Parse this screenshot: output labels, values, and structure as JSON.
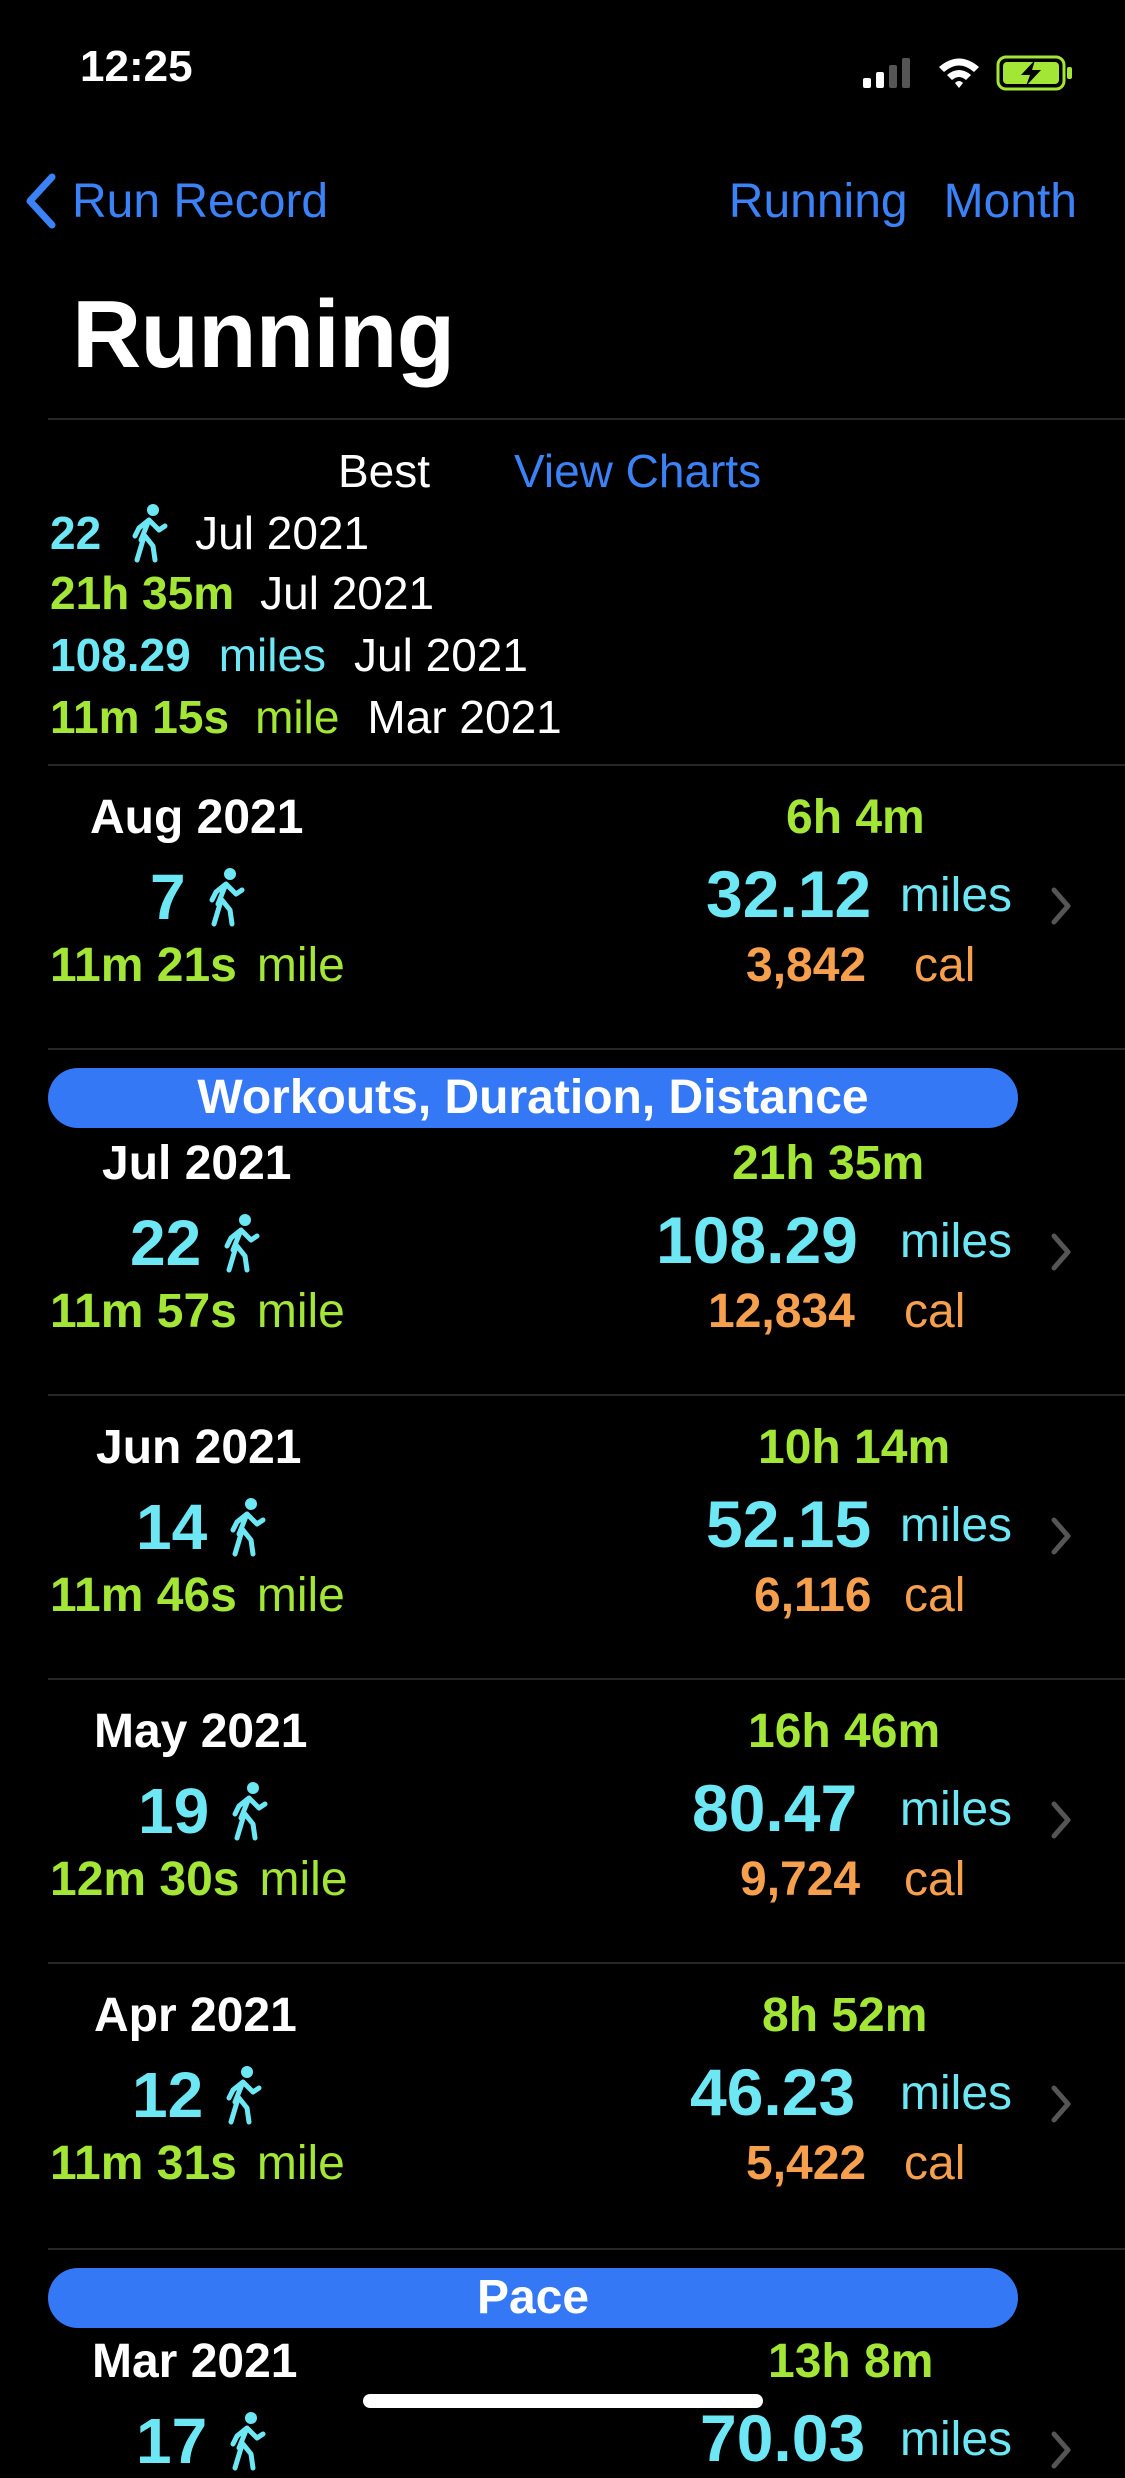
{
  "status_bar": {
    "time": "12:25"
  },
  "nav": {
    "back_label": "Run Record",
    "right_items": [
      "Running",
      "Month"
    ]
  },
  "title": "Running",
  "best": {
    "label": "Best",
    "view_charts": "View Charts",
    "workouts": {
      "value": "22",
      "date": "Jul 2021"
    },
    "duration": {
      "value": "21h 35m",
      "date": "Jul 2021"
    },
    "distance": {
      "value": "108.29",
      "unit": "miles",
      "date": "Jul 2021"
    },
    "pace": {
      "value": "11m 15s",
      "unit": "mile",
      "date": "Mar 2021"
    }
  },
  "sections": {
    "workouts_duration_distance": "Workouts, Duration, Distance",
    "pace": "Pace"
  },
  "months": [
    {
      "month": "Aug 2021",
      "count": "7",
      "pace": "11m 21s",
      "pace_unit": "mile",
      "duration": "6h 4m",
      "distance": "32.12",
      "distance_unit": "miles",
      "calories": "3,842",
      "cal_unit": "cal"
    },
    {
      "month": "Jul 2021",
      "count": "22",
      "pace": "11m 57s",
      "pace_unit": "mile",
      "duration": "21h 35m",
      "distance": "108.29",
      "distance_unit": "miles",
      "calories": "12,834",
      "cal_unit": "cal"
    },
    {
      "month": "Jun 2021",
      "count": "14",
      "pace": "11m 46s",
      "pace_unit": "mile",
      "duration": "10h 14m",
      "distance": "52.15",
      "distance_unit": "miles",
      "calories": "6,116",
      "cal_unit": "cal"
    },
    {
      "month": "May 2021",
      "count": "19",
      "pace": "12m 30s",
      "pace_unit": "mile",
      "duration": "16h 46m",
      "distance": "80.47",
      "distance_unit": "miles",
      "calories": "9,724",
      "cal_unit": "cal"
    },
    {
      "month": "Apr 2021",
      "count": "12",
      "pace": "11m 31s",
      "pace_unit": "mile",
      "duration": "8h 52m",
      "distance": "46.23",
      "distance_unit": "miles",
      "calories": "5,422",
      "cal_unit": "cal"
    },
    {
      "month": "Mar 2021",
      "count": "17",
      "duration": "13h 8m",
      "distance": "70.03",
      "distance_unit": "miles"
    }
  ],
  "icons": {
    "back": "chevron-left-icon",
    "walker": "walking-figure-icon",
    "row_chevron": "chevron-right-icon"
  },
  "colors": {
    "accent": "#3b82f6",
    "cyan": "#6ee7f4",
    "green": "#a3e635",
    "orange": "#f6a04d",
    "pill": "#3478f6"
  }
}
